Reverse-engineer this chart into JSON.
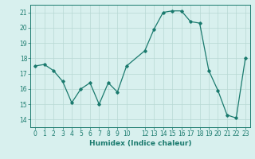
{
  "x": [
    0,
    1,
    2,
    3,
    4,
    5,
    6,
    7,
    8,
    9,
    10,
    12,
    13,
    14,
    15,
    16,
    17,
    18,
    19,
    20,
    21,
    22,
    23
  ],
  "y": [
    17.5,
    17.6,
    17.2,
    16.5,
    15.1,
    16.0,
    16.4,
    15.0,
    16.4,
    15.8,
    17.5,
    18.5,
    19.9,
    21.0,
    21.1,
    21.1,
    20.4,
    20.3,
    17.2,
    15.9,
    14.3,
    14.1,
    18.0
  ],
  "xlabel": "Humidex (Indice chaleur)",
  "ylabel": "",
  "xlim": [
    -0.5,
    23.5
  ],
  "ylim": [
    13.5,
    21.5
  ],
  "yticks": [
    14,
    15,
    16,
    17,
    18,
    19,
    20,
    21
  ],
  "xtick_labels": [
    "0",
    "1",
    "2",
    "3",
    "4",
    "5",
    "6",
    "7",
    "8",
    "9",
    "10",
    "12",
    "13",
    "14",
    "15",
    "16",
    "17",
    "18",
    "19",
    "20",
    "21",
    "22",
    "23"
  ],
  "xtick_positions": [
    0,
    1,
    2,
    3,
    4,
    5,
    6,
    7,
    8,
    9,
    10,
    12,
    13,
    14,
    15,
    16,
    17,
    18,
    19,
    20,
    21,
    22,
    23
  ],
  "line_color": "#1a7a6e",
  "bg_color": "#d8f0ee",
  "grid_color": "#b8d8d4",
  "tick_fontsize": 5.5,
  "xlabel_fontsize": 6.5
}
